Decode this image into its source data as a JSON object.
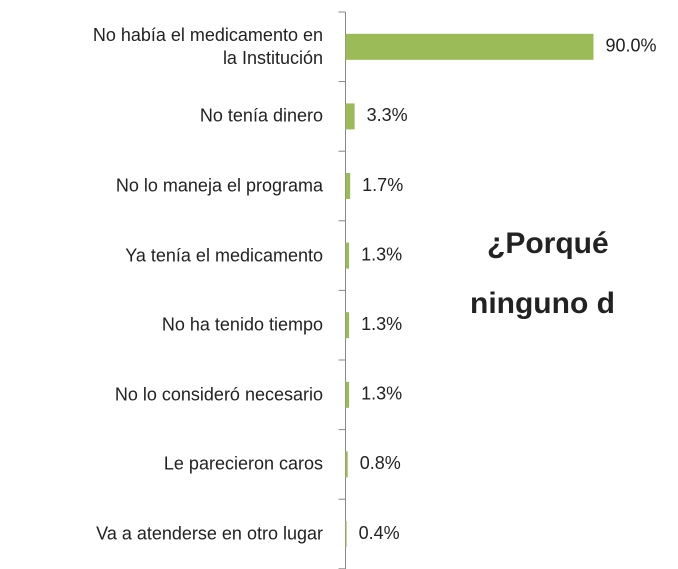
{
  "chart_data": {
    "type": "bar",
    "orientation": "horizontal",
    "title_lines": [
      "¿Porqué",
      "ninguno d"
    ],
    "categories": [
      "No había el medicamento en\nla Institución",
      "No tenía dinero",
      "No lo maneja el programa",
      "Ya tenía el medicamento",
      "No ha tenido tiempo",
      "No lo consideró necesario",
      "Le parecieron caros",
      "Va a atenderse en otro lugar"
    ],
    "values": [
      90,
      3.3,
      1.7,
      1.3,
      1.3,
      1.3,
      0.8,
      0.4
    ],
    "value_labels": [
      "90.0%",
      "3.3%",
      "1.7%",
      "1.3%",
      "1.3%",
      "1.3%",
      "0.8%",
      "0.4%"
    ],
    "color": "#9bbb59",
    "xlim": [
      0,
      90
    ]
  }
}
